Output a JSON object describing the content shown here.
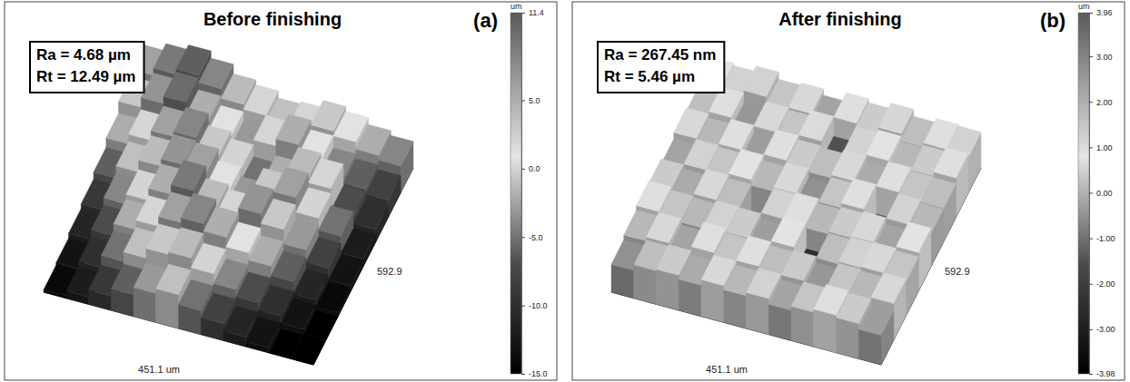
{
  "chart_data": [
    {
      "type": "surface",
      "title": "Before finishing",
      "panel_label": "(a)",
      "annotations": [
        "Ra = 4.68 µm",
        "Rt = 12.49 µm"
      ],
      "xlabel": "451.1 um",
      "ylabel": "592.9",
      "colorbar": {
        "label": "um",
        "range": [
          -15,
          11.4
        ],
        "ticks": [
          11.4,
          {
            "value": 5,
            "label": "5.0"
          },
          {
            "value": 0,
            "label": "0.0"
          },
          {
            "value": -5,
            "label": "-5.0"
          },
          {
            "value": -10,
            "label": "-10.0"
          },
          {
            "value": -15,
            "label": "-15.0"
          }
        ]
      },
      "z": [
        [
          6,
          9,
          11,
          8,
          4,
          2,
          -1,
          0,
          3,
          1,
          -2,
          -4
        ],
        [
          3,
          7,
          10,
          5,
          1,
          -3,
          2,
          5,
          1,
          -4,
          -6,
          -8
        ],
        [
          -2,
          2,
          6,
          8,
          3,
          0,
          -5,
          -2,
          4,
          2,
          -7,
          -10
        ],
        [
          -6,
          -1,
          4,
          7,
          6,
          1,
          -3,
          3,
          6,
          0,
          -5,
          -12
        ],
        [
          -9,
          -4,
          0,
          5,
          9,
          4,
          2,
          7,
          3,
          -3,
          -8,
          -13
        ],
        [
          -11,
          -7,
          -2,
          2,
          6,
          8,
          5,
          1,
          -2,
          -6,
          -11,
          -14
        ],
        [
          -13,
          -10,
          -5,
          -1,
          3,
          4,
          0,
          -4,
          -7,
          -10,
          -13,
          -15
        ],
        [
          -14,
          -12,
          -9,
          -6,
          -3,
          -1,
          -5,
          -8,
          -11,
          -13,
          -15,
          -15
        ]
      ]
    },
    {
      "type": "surface",
      "title": "After finishing",
      "panel_label": "(b)",
      "annotations": [
        "Ra = 267.45 nm",
        "Rt = 5.46 µm"
      ],
      "xlabel": "451.1 um",
      "ylabel": "592.9",
      "colorbar": {
        "label": "um",
        "range": [
          -3.98,
          3.96
        ],
        "ticks": [
          3.96,
          {
            "value": 3,
            "label": "3.00"
          },
          {
            "value": 2,
            "label": "2.00"
          },
          {
            "value": 1,
            "label": "1.00"
          },
          {
            "value": 0,
            "label": "0.00"
          },
          {
            "value": -1,
            "label": "-1.00"
          },
          {
            "value": -2,
            "label": "-2.00"
          },
          {
            "value": -3,
            "label": "-3.00"
          },
          -3.98
        ]
      },
      "z": [
        [
          0.8,
          0.5,
          1.2,
          0.3,
          0.6,
          -0.2,
          0.9,
          0.4,
          1.1,
          0.2,
          0.7,
          0.5
        ],
        [
          0.2,
          0.9,
          -0.4,
          0.6,
          0.3,
          1.0,
          -1.5,
          0.5,
          0.8,
          0.1,
          0.4,
          0.9
        ],
        [
          0.6,
          0.1,
          0.7,
          -0.3,
          0.9,
          0.4,
          0.2,
          0.6,
          -0.1,
          0.7,
          0.3,
          0.2
        ],
        [
          -0.2,
          0.5,
          0.3,
          0.8,
          0.1,
          0.6,
          -0.5,
          0.3,
          0.9,
          -2.8,
          0.5,
          0.1
        ],
        [
          0.4,
          -0.1,
          0.6,
          0.2,
          -3.2,
          0.5,
          0.7,
          0.1,
          0.4,
          0.6,
          -0.2,
          0.8
        ],
        [
          0.7,
          0.3,
          0.1,
          0.5,
          0.4,
          -0.3,
          0.8,
          -2.5,
          0.2,
          0.5,
          0.6,
          0.3
        ],
        [
          0.1,
          0.6,
          -0.2,
          0.9,
          0.3,
          0.7,
          0.2,
          0.4,
          -0.4,
          0.3,
          0.1,
          0.6
        ],
        [
          -0.5,
          0.2,
          0.4,
          -0.1,
          0.6,
          0.1,
          0.5,
          -0.2,
          0.3,
          0.7,
          0.4,
          -0.3
        ]
      ]
    }
  ]
}
